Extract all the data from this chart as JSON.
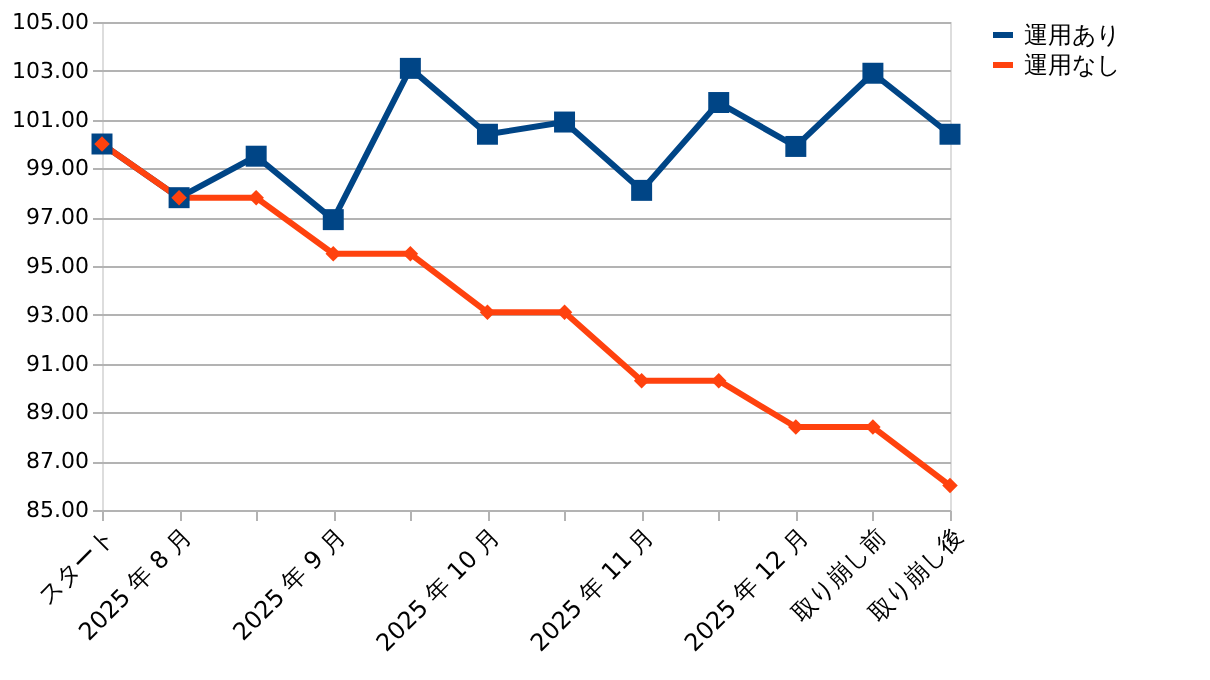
{
  "chart_data": {
    "type": "line",
    "categories": [
      "スタート",
      "2025 年 8 月",
      null,
      "2025 年 9 月",
      null,
      "2025 年 10 月",
      null,
      "2025 年 11 月",
      null,
      "2025 年 12 月",
      "取り崩し前",
      "取り崩し後"
    ],
    "series": [
      {
        "name": "運用あり",
        "color": "#004586",
        "marker": "square",
        "values": [
          100.0,
          97.8,
          99.5,
          96.9,
          103.1,
          100.4,
          100.9,
          98.1,
          101.7,
          99.9,
          102.9,
          100.4
        ]
      },
      {
        "name": "運用なし",
        "color": "#ff420e",
        "marker": "diamond",
        "values": [
          100.0,
          97.8,
          97.8,
          95.5,
          95.5,
          93.1,
          93.1,
          90.3,
          90.3,
          88.4,
          88.4,
          86.0
        ]
      }
    ],
    "ylim": [
      85,
      105
    ],
    "yticks": [
      {
        "value": 85,
        "label": "85.00"
      },
      {
        "value": 87,
        "label": "87.00"
      },
      {
        "value": 89,
        "label": "89.00"
      },
      {
        "value": 91,
        "label": "91.00"
      },
      {
        "value": 93,
        "label": "93.00"
      },
      {
        "value": 95,
        "label": "95.00"
      },
      {
        "value": 97,
        "label": "97.00"
      },
      {
        "value": 99,
        "label": "99.00"
      },
      {
        "value": 101,
        "label": "101.00"
      },
      {
        "value": 103,
        "label": "103.00"
      },
      {
        "value": 105,
        "label": "105.00"
      }
    ],
    "grid": "y",
    "legend": "right",
    "line_style": "solid"
  }
}
